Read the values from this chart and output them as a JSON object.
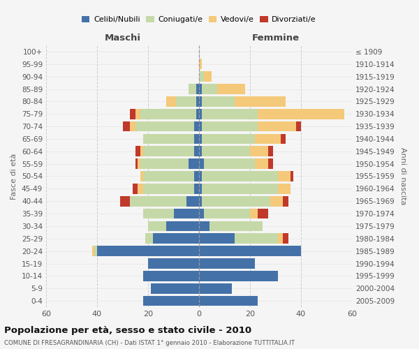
{
  "age_groups": [
    "0-4",
    "5-9",
    "10-14",
    "15-19",
    "20-24",
    "25-29",
    "30-34",
    "35-39",
    "40-44",
    "45-49",
    "50-54",
    "55-59",
    "60-64",
    "65-69",
    "70-74",
    "75-79",
    "80-84",
    "85-89",
    "90-94",
    "95-99",
    "100+"
  ],
  "birth_years": [
    "2005-2009",
    "2000-2004",
    "1995-1999",
    "1990-1994",
    "1985-1989",
    "1980-1984",
    "1975-1979",
    "1970-1974",
    "1965-1969",
    "1960-1964",
    "1955-1959",
    "1950-1954",
    "1945-1949",
    "1940-1944",
    "1935-1939",
    "1930-1934",
    "1925-1929",
    "1920-1924",
    "1915-1919",
    "1910-1914",
    "≤ 1909"
  ],
  "colors": {
    "celibe": "#4472a8",
    "coniugato": "#c5d9a8",
    "vedovo": "#f5c97a",
    "divorziato": "#c0392b"
  },
  "maschi": {
    "celibe": [
      22,
      19,
      22,
      20,
      40,
      18,
      13,
      10,
      5,
      2,
      2,
      4,
      2,
      2,
      2,
      1,
      1,
      1,
      0,
      0,
      0
    ],
    "coniugato": [
      0,
      0,
      0,
      0,
      1,
      3,
      7,
      12,
      22,
      20,
      20,
      19,
      20,
      20,
      23,
      22,
      8,
      3,
      0,
      0,
      0
    ],
    "vedovo": [
      0,
      0,
      0,
      0,
      1,
      0,
      0,
      0,
      0,
      2,
      1,
      1,
      1,
      0,
      2,
      2,
      4,
      0,
      0,
      0,
      0
    ],
    "divorziato": [
      0,
      0,
      0,
      0,
      0,
      0,
      0,
      0,
      4,
      2,
      0,
      1,
      2,
      0,
      3,
      2,
      0,
      0,
      0,
      0,
      0
    ]
  },
  "femmine": {
    "nubile": [
      23,
      13,
      31,
      22,
      40,
      14,
      4,
      2,
      1,
      1,
      1,
      2,
      1,
      1,
      1,
      1,
      1,
      1,
      0,
      0,
      0
    ],
    "coniugata": [
      0,
      0,
      0,
      0,
      0,
      17,
      21,
      18,
      27,
      30,
      30,
      20,
      19,
      21,
      22,
      22,
      13,
      6,
      2,
      0,
      0
    ],
    "vedova": [
      0,
      0,
      0,
      0,
      0,
      2,
      0,
      3,
      5,
      5,
      5,
      5,
      7,
      10,
      15,
      34,
      20,
      11,
      3,
      1,
      0
    ],
    "divorziata": [
      0,
      0,
      0,
      0,
      0,
      2,
      0,
      4,
      2,
      0,
      1,
      2,
      2,
      2,
      2,
      0,
      0,
      0,
      0,
      0,
      0
    ]
  },
  "xlim": 60,
  "xlabel_left": "Maschi",
  "xlabel_right": "Femmine",
  "ylabel_left": "Fasce di età",
  "ylabel_right": "Anni di nascita",
  "title": "Popolazione per età, sesso e stato civile - 2010",
  "subtitle": "COMUNE DI FRESAGRANDINARIA (CH) - Dati ISTAT 1° gennaio 2010 - Elaborazione TUTTITALIA.IT",
  "legend_labels": [
    "Celibi/Nubili",
    "Coniugati/e",
    "Vedovi/e",
    "Divorziati/e"
  ],
  "background_color": "#f5f5f5",
  "grid_color": "#cccccc"
}
